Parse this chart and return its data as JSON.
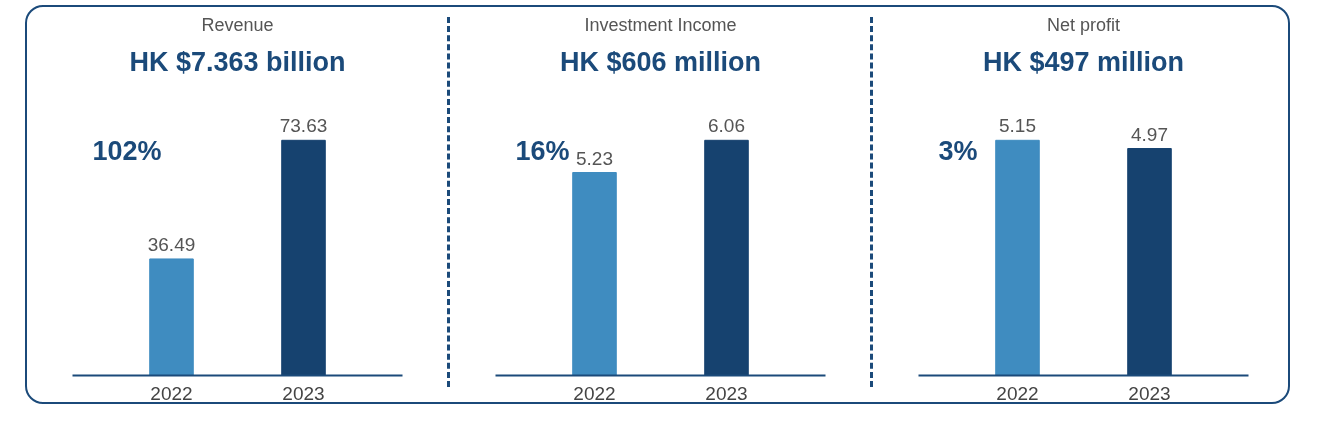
{
  "chart_data": [
    {
      "type": "bar",
      "title": "Revenue",
      "subtitle": "HK $7.363 billion",
      "categories": [
        "2022",
        "2023"
      ],
      "values": [
        36.49,
        73.63
      ],
      "colors": [
        "#3f8cc0",
        "#16426f"
      ],
      "data_labels": true,
      "tick_labels": "x",
      "annotations": [
        "102%"
      ]
    },
    {
      "type": "bar",
      "title": "Investment Income",
      "subtitle": "HK $606 million",
      "categories": [
        "2022",
        "2023"
      ],
      "values": [
        5.23,
        6.06
      ],
      "colors": [
        "#3f8cc0",
        "#16426f"
      ],
      "data_labels": true,
      "tick_labels": "x",
      "annotations": [
        "16%"
      ]
    },
    {
      "type": "bar",
      "title": "Net profit",
      "subtitle": "HK $497 million",
      "categories": [
        "2022",
        "2023"
      ],
      "values": [
        5.15,
        4.97
      ],
      "colors": [
        "#3f8cc0",
        "#16426f"
      ],
      "data_labels": true,
      "tick_labels": "x",
      "annotations": [
        "3%"
      ]
    }
  ]
}
